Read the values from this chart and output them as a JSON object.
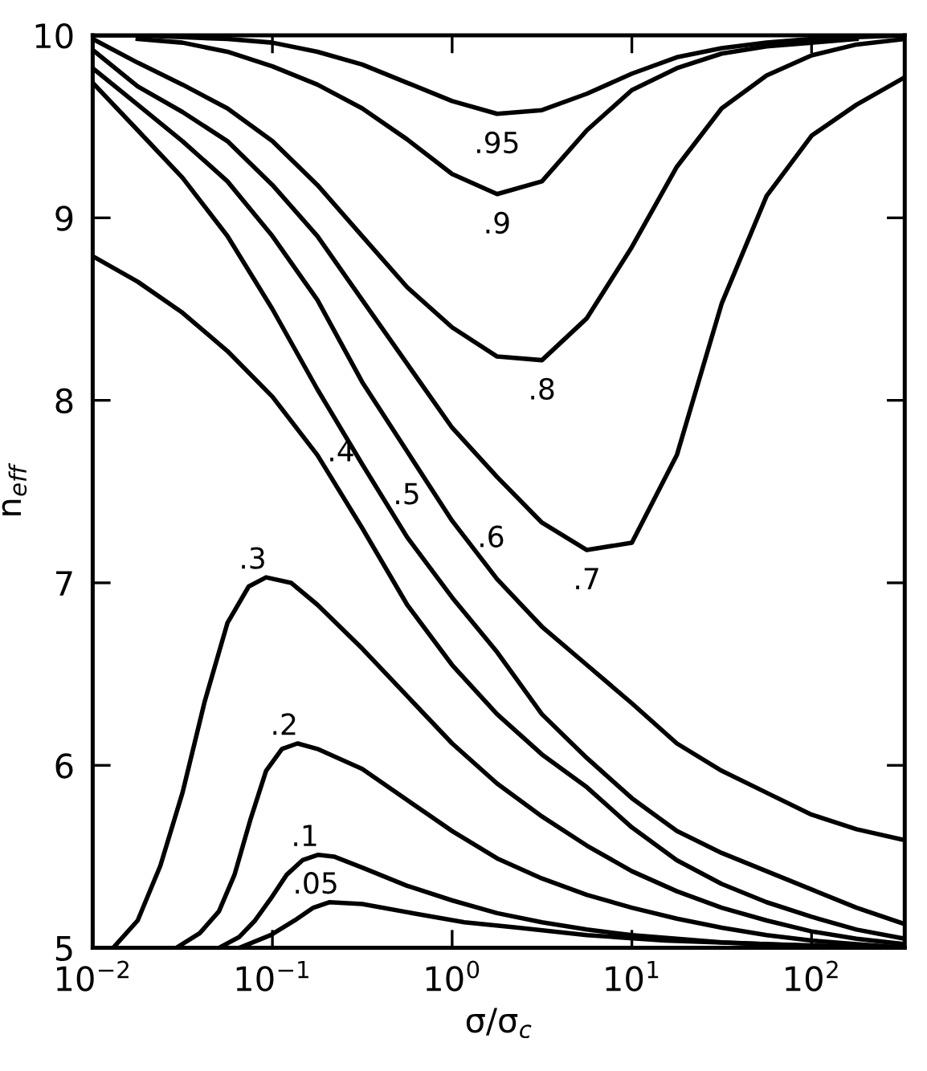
{
  "chart_data": {
    "type": "line",
    "xlabel": "σ/σ$_{c}$",
    "ylabel": "n$_{eff}$",
    "log": "x",
    "grid": false,
    "marker": "none",
    "line_style": "solid",
    "xlim": [
      0.01,
      330
    ],
    "ylim": [
      5,
      10
    ],
    "xticks": [
      {
        "value": 0.01,
        "label": "10$^{−2}$"
      },
      {
        "value": 0.1,
        "label": "10$^{−1}$"
      },
      {
        "value": 1,
        "label": "10$^{0}$"
      },
      {
        "value": 10,
        "label": "10$^{1}$"
      },
      {
        "value": 100,
        "label": "10$^{2}$"
      }
    ],
    "yticks": [
      5,
      6,
      7,
      8,
      9,
      10
    ],
    "series": [
      {
        "name": ".95",
        "color": "#000000",
        "x": [
          0.01,
          0.0178,
          0.0316,
          0.0562,
          0.1,
          0.178,
          0.316,
          0.562,
          1,
          1.78,
          3.16,
          5.62,
          10,
          17.8,
          31.6,
          56.2,
          100,
          178,
          330
        ],
        "values": [
          10.0,
          10.0,
          9.99,
          9.98,
          9.96,
          9.91,
          9.84,
          9.74,
          9.64,
          9.57,
          9.59,
          9.68,
          9.79,
          9.88,
          9.93,
          9.96,
          9.98,
          9.99,
          10.0
        ]
      },
      {
        "name": ".9",
        "color": "#000000",
        "x": [
          0.0178,
          0.0316,
          0.0562,
          0.1,
          0.178,
          0.316,
          0.562,
          1,
          1.78,
          3.16,
          5.62,
          10,
          17.8,
          31.6,
          56.2,
          100,
          178
        ],
        "values": [
          9.98,
          9.96,
          9.91,
          9.83,
          9.73,
          9.6,
          9.43,
          9.24,
          9.13,
          9.2,
          9.48,
          9.7,
          9.82,
          9.9,
          9.94,
          9.96,
          9.98
        ]
      },
      {
        "color": "#000000",
        "x": [
          0.01,
          0.0178,
          0.0316,
          0.0562,
          0.1,
          0.178,
          0.316,
          0.562,
          1,
          1.78,
          3.16,
          5.62,
          10,
          17.8,
          31.6,
          56.2,
          100,
          178,
          330
        ],
        "name": ".8",
        "values": [
          9.98,
          9.85,
          9.73,
          9.6,
          9.42,
          9.18,
          8.9,
          8.62,
          8.4,
          8.24,
          8.22,
          8.45,
          8.84,
          9.28,
          9.6,
          9.78,
          9.89,
          9.95,
          9.98
        ]
      },
      {
        "color": "#000000",
        "x": [
          0.01,
          0.0178,
          0.0316,
          0.0562,
          0.1,
          0.178,
          0.316,
          0.562,
          1,
          1.78,
          3.16,
          5.62,
          10,
          17.8,
          31.6,
          56.2,
          100,
          178,
          330
        ],
        "name": ".7",
        "values": [
          9.92,
          9.72,
          9.58,
          9.42,
          9.18,
          8.9,
          8.55,
          8.2,
          7.85,
          7.58,
          7.33,
          7.18,
          7.22,
          7.7,
          8.53,
          9.12,
          9.45,
          9.62,
          9.77
        ]
      },
      {
        "color": "#000000",
        "x": [
          0.01,
          0.0178,
          0.0316,
          0.0562,
          0.1,
          0.178,
          0.316,
          0.562,
          1,
          1.78,
          3.16,
          5.62,
          10,
          17.8,
          31.6,
          56.2,
          100,
          178,
          330
        ],
        "name": ".6",
        "values": [
          9.82,
          9.62,
          9.42,
          9.2,
          8.9,
          8.55,
          8.1,
          7.72,
          7.34,
          7.02,
          6.76,
          6.55,
          6.34,
          6.12,
          5.97,
          5.85,
          5.73,
          5.65,
          5.59
        ]
      },
      {
        "color": "#000000",
        "x": [
          0.01,
          0.0178,
          0.0316,
          0.0562,
          0.1,
          0.178,
          0.316,
          0.562,
          1,
          1.78,
          3.16,
          5.62,
          10,
          17.8,
          31.6,
          56.2,
          100,
          178,
          330
        ],
        "name": ".5",
        "values": [
          9.74,
          9.48,
          9.22,
          8.9,
          8.5,
          8.06,
          7.65,
          7.25,
          6.92,
          6.62,
          6.28,
          6.04,
          5.82,
          5.64,
          5.52,
          5.42,
          5.32,
          5.22,
          5.13
        ]
      },
      {
        "color": "#000000",
        "x": [
          0.01,
          0.0178,
          0.0316,
          0.0562,
          0.1,
          0.178,
          0.316,
          0.562,
          1,
          1.78,
          3.16,
          5.62,
          10,
          17.8,
          31.6,
          56.2,
          100,
          178,
          330
        ],
        "name": ".4",
        "values": [
          8.79,
          8.65,
          8.48,
          8.27,
          8.02,
          7.7,
          7.3,
          6.88,
          6.55,
          6.28,
          6.06,
          5.88,
          5.66,
          5.48,
          5.35,
          5.25,
          5.17,
          5.1,
          5.05
        ]
      },
      {
        "color": "#000000",
        "x": [
          0.013,
          0.0178,
          0.0238,
          0.0316,
          0.042,
          0.0562,
          0.0738,
          0.0922,
          0.127,
          0.178,
          0.316,
          0.562,
          1,
          1.78,
          3.16,
          5.62,
          10,
          17.8,
          31.6,
          56.2,
          100,
          178,
          330
        ],
        "name": ".3",
        "values": [
          5.0,
          5.15,
          5.45,
          5.85,
          6.35,
          6.78,
          6.98,
          7.03,
          7.0,
          6.88,
          6.64,
          6.38,
          6.12,
          5.9,
          5.72,
          5.56,
          5.42,
          5.31,
          5.22,
          5.15,
          5.09,
          5.05,
          5.02
        ]
      },
      {
        "color": "#000000",
        "x": [
          0.0292,
          0.0394,
          0.0504,
          0.0615,
          0.0753,
          0.0922,
          0.113,
          0.138,
          0.178,
          0.316,
          0.562,
          1,
          1.78,
          3.16,
          5.62,
          10,
          17.8,
          31.6,
          56.2,
          100,
          178,
          330
        ],
        "name": ".2",
        "values": [
          5.0,
          5.08,
          5.2,
          5.4,
          5.7,
          5.97,
          6.09,
          6.12,
          6.09,
          5.98,
          5.81,
          5.64,
          5.49,
          5.38,
          5.29,
          5.22,
          5.16,
          5.11,
          5.07,
          5.04,
          5.02,
          5.0
        ]
      },
      {
        "color": "#000000",
        "x": [
          0.0504,
          0.0655,
          0.0801,
          0.098,
          0.12,
          0.147,
          0.18,
          0.22,
          0.316,
          0.562,
          1,
          1.78,
          3.16,
          5.62,
          10,
          31.6,
          100,
          330
        ],
        "name": ".1",
        "values": [
          5.0,
          5.06,
          5.15,
          5.27,
          5.4,
          5.48,
          5.51,
          5.5,
          5.44,
          5.34,
          5.26,
          5.19,
          5.14,
          5.1,
          5.07,
          5.03,
          5.01,
          5.0
        ]
      },
      {
        "color": "#000000",
        "x": [
          0.0655,
          0.098,
          0.133,
          0.169,
          0.207,
          0.316,
          0.604,
          1.17,
          2.33,
          5.62,
          15.3,
          56.2,
          330
        ],
        "name": ".05",
        "values": [
          5.0,
          5.07,
          5.15,
          5.22,
          5.25,
          5.24,
          5.19,
          5.14,
          5.11,
          5.07,
          5.04,
          5.02,
          5.0
        ]
      }
    ]
  }
}
